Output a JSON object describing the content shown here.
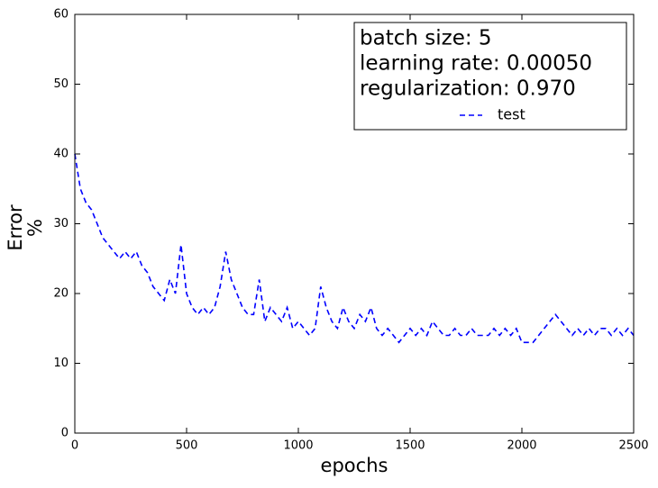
{
  "chart_data": {
    "type": "line",
    "xlabel": "epochs",
    "ylabel_lines": [
      "Error",
      "%"
    ],
    "legend_title_lines": [
      "batch size: 5",
      "learning rate: 0.00050",
      "regularization: 0.970"
    ],
    "legend": "upper right",
    "xlim": [
      0,
      2500
    ],
    "xticks": [
      0,
      500,
      1000,
      1500,
      2000,
      2500
    ],
    "ylim": [
      0,
      60
    ],
    "yticks": [
      0,
      10,
      20,
      30,
      40,
      50,
      60
    ],
    "x": [
      0,
      25,
      50,
      75,
      100,
      125,
      150,
      175,
      200,
      225,
      250,
      275,
      300,
      325,
      350,
      375,
      400,
      425,
      450,
      475,
      500,
      525,
      550,
      575,
      600,
      625,
      650,
      675,
      700,
      725,
      750,
      775,
      800,
      825,
      850,
      875,
      900,
      925,
      950,
      975,
      1000,
      1025,
      1050,
      1075,
      1100,
      1125,
      1150,
      1175,
      1200,
      1225,
      1250,
      1275,
      1300,
      1325,
      1350,
      1375,
      1400,
      1425,
      1450,
      1475,
      1500,
      1525,
      1550,
      1575,
      1600,
      1625,
      1650,
      1675,
      1700,
      1725,
      1750,
      1775,
      1800,
      1825,
      1850,
      1875,
      1900,
      1925,
      1950,
      1975,
      2000,
      2025,
      2050,
      2075,
      2100,
      2125,
      2150,
      2175,
      2200,
      2225,
      2250,
      2275,
      2300,
      2325,
      2350,
      2375,
      2400,
      2425,
      2450,
      2475,
      2500
    ],
    "series": [
      {
        "name": "test",
        "color": "#0000ff",
        "dashed": true,
        "values": [
          40,
          35,
          33,
          32,
          30,
          28,
          27,
          26,
          25,
          26,
          25,
          26,
          24,
          23,
          21,
          20,
          19,
          22,
          20,
          27,
          20,
          18,
          17,
          18,
          17,
          18,
          21,
          26,
          22,
          20,
          18,
          17,
          17,
          22,
          16,
          18,
          17,
          16,
          18,
          15,
          16,
          15,
          14,
          15,
          21,
          18,
          16,
          15,
          18,
          16,
          15,
          17,
          16,
          18,
          15,
          14,
          15,
          14,
          13,
          14,
          15,
          14,
          15,
          14,
          16,
          15,
          14,
          14,
          15,
          14,
          14,
          15,
          14,
          14,
          14,
          15,
          14,
          15,
          14,
          15,
          13,
          13,
          13,
          14,
          15,
          16,
          17,
          16,
          15,
          14,
          15,
          14,
          15,
          14,
          15,
          15,
          14,
          15,
          14,
          15,
          14
        ]
      }
    ]
  }
}
